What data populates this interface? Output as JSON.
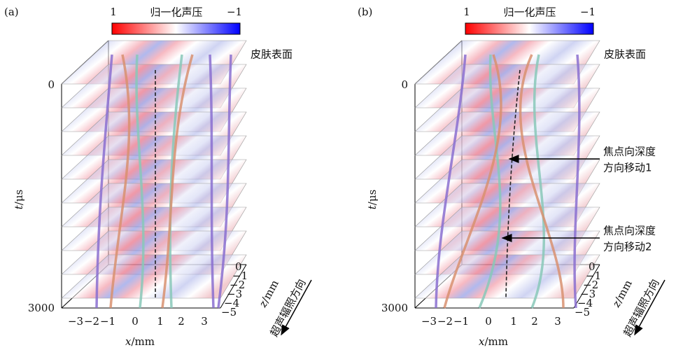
{
  "panels": [
    {
      "label": "(a)",
      "colorbar": {
        "left_label": "1",
        "title": "归一化声压",
        "right_label": "−1"
      },
      "surface_label": "皮肤表面",
      "t_axis": {
        "variable": "t",
        "unit": "/μs",
        "ticks": [
          "0",
          "3000"
        ]
      },
      "x_axis": {
        "variable": "x",
        "unit": "/mm",
        "ticks": [
          "−3",
          "−2",
          "−1",
          "0",
          "1",
          "2",
          "3"
        ]
      },
      "z_axis": {
        "variable": "z",
        "unit": "/mm",
        "ticks": [
          "0",
          "−1",
          "−2",
          "−3",
          "−4",
          "−5"
        ]
      },
      "direction_label": "超声辐照方向",
      "annotations": []
    },
    {
      "label": "(b)",
      "colorbar": {
        "left_label": "1",
        "title": "归一化声压",
        "right_label": "−1"
      },
      "surface_label": "皮肤表面",
      "t_axis": {
        "variable": "t",
        "unit": "/μs",
        "ticks": [
          "0",
          "3000"
        ]
      },
      "x_axis": {
        "variable": "x",
        "unit": "/mm",
        "ticks": [
          "−3",
          "−2",
          "−1",
          "0",
          "1",
          "2",
          "3"
        ]
      },
      "z_axis": {
        "variable": "z",
        "unit": "/mm",
        "ticks": [
          "0",
          "−1",
          "−2",
          "−3",
          "−4",
          "−5"
        ]
      },
      "direction_label": "超声辐照方向",
      "annotations": [
        {
          "lines": [
            "焦点向深度",
            "方向移动1"
          ]
        },
        {
          "lines": [
            "焦点向深度",
            "方向移动2"
          ]
        }
      ]
    }
  ]
}
